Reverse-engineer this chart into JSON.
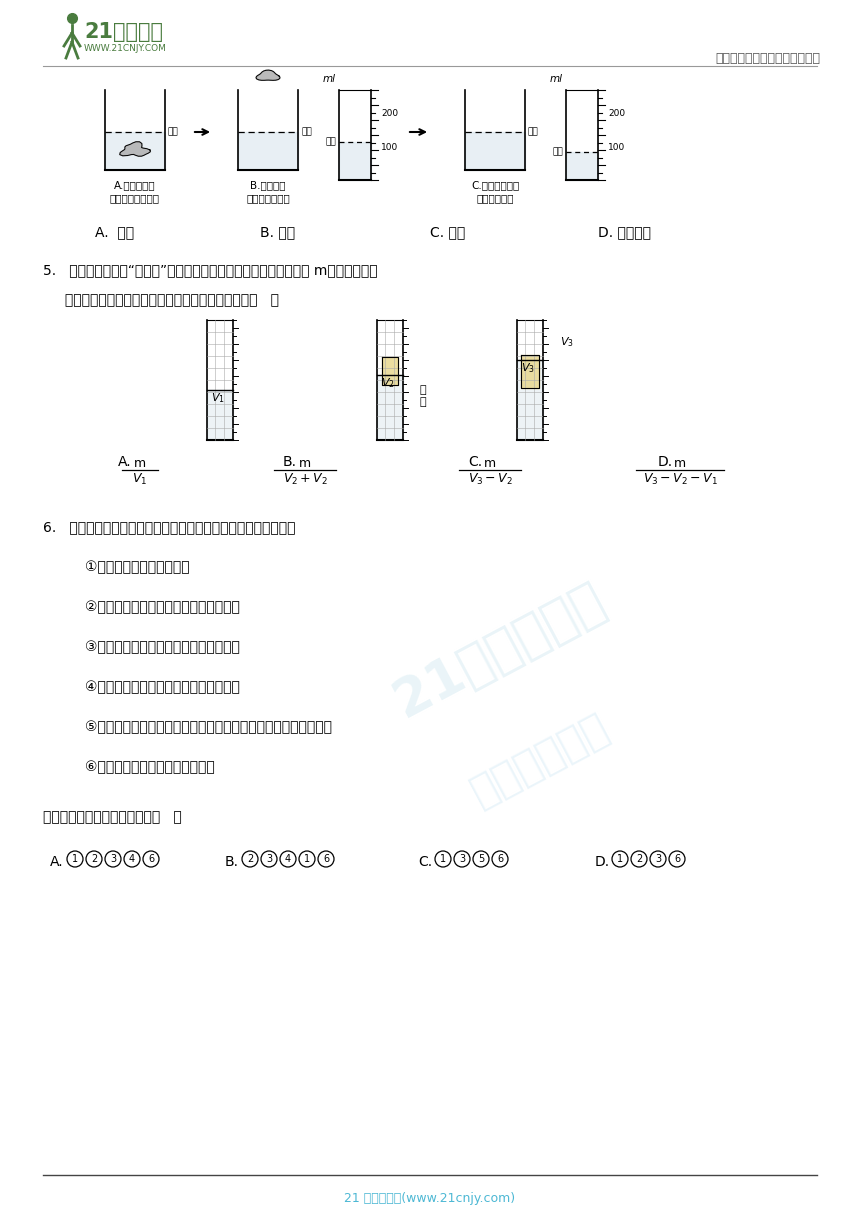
{
  "page_width": 8.6,
  "page_height": 12.16,
  "bg_color": "#ffffff",
  "header_right": "中小学教育资源及组卷应用平台",
  "footer_text": "21 世纪教育网(www.21cnjy.com)",
  "footer_text_color": "#4db8d4",
  "watermark_color": "#d0e8f0",
  "green_color": "#4a7c3f",
  "q4_A": "A.  偏大",
  "q4_B": "B. 偏小",
  "q4_C": "C. 相等",
  "q4_D": "D. 无法确定",
  "q5_text1": "5.   在实验室中常用“悬垂法”测木块的密度，用天平测出木块的质量 m，用量筒测量",
  "q5_text2": "     木块的体积，如图所示，则计算木块密度的公式为（   ）",
  "q6_title": "6.   为了测出金属块的密度，某实验小组制定了如下的实验计划：",
  "q6_steps": [
    "①用天平测出金属块的质量",
    "②用细线系住金属块，轻轻放入空量筒中",
    "③在量筒中装入适量的水，记下水的体积",
    "④将金属块从量筒中取出，记下水的体积",
    "⑤用细线系住金属块，把金属块洸没在量筒的水中，记下水的体积",
    "⑥根据实验数据计算金属块的密度"
  ],
  "q6_answer_text": "以上实验步骤安排最合理的是（   ）",
  "beaker_A_label1": "A.加水到标记",
  "beaker_A_label2": "（矿石浸没水中）",
  "beaker_B_label1": "B.取出矿石",
  "beaker_B_label2": "（准备补充水）",
  "beaker_C_label1": "C.将量筒中水倒",
  "beaker_C_label2": "入杯中至标记",
  "label_biaoji": "标记",
  "label_ml": "ml"
}
